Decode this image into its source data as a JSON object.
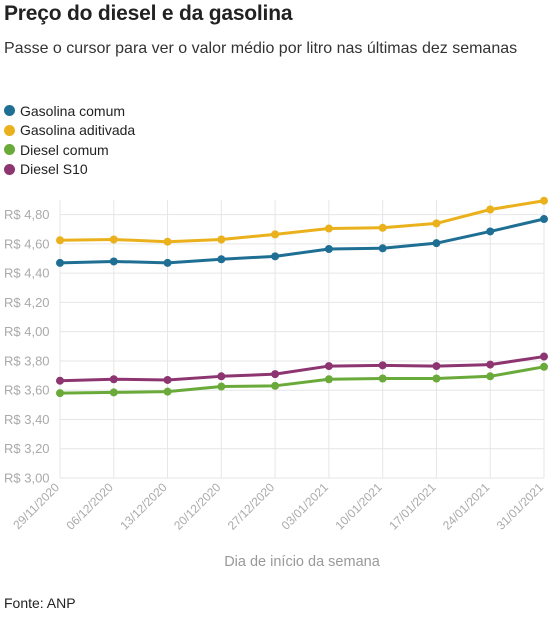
{
  "header": {
    "title": "Preço do diesel e da gasolina",
    "subtitle": "Passe o cursor para ver o valor médio por litro nas últimas dez semanas"
  },
  "source": "Fonte: ANP",
  "chart_data": {
    "type": "line",
    "xlabel": "Dia de início da semana",
    "ylabel": "",
    "ylim": [
      3.0,
      4.9
    ],
    "y_ticks": [
      3.0,
      3.2,
      3.4,
      3.6,
      3.8,
      4.0,
      4.2,
      4.4,
      4.6,
      4.8
    ],
    "y_tick_labels": [
      "R$ 3,00",
      "R$ 3,20",
      "R$ 3,40",
      "R$ 3,60",
      "R$ 3,80",
      "R$ 4,00",
      "R$ 4,20",
      "R$ 4,40",
      "R$ 4,60",
      "R$ 4,80"
    ],
    "grid": true,
    "legend_position": "top-left",
    "categories": [
      "29/11/2020",
      "06/12/2020",
      "13/12/2020",
      "20/12/2020",
      "27/12/2020",
      "03/01/2021",
      "10/01/2021",
      "17/01/2021",
      "24/01/2021",
      "31/01/2021"
    ],
    "series": [
      {
        "name": "Gasolina comum",
        "color": "#1f6f94",
        "values": [
          4.47,
          4.48,
          4.47,
          4.495,
          4.515,
          4.565,
          4.57,
          4.605,
          4.685,
          4.77
        ]
      },
      {
        "name": "Gasolina aditivada",
        "color": "#eab11c",
        "values": [
          4.625,
          4.63,
          4.615,
          4.63,
          4.665,
          4.705,
          4.71,
          4.74,
          4.835,
          4.895
        ]
      },
      {
        "name": "Diesel comum",
        "color": "#6aaa3a",
        "values": [
          3.58,
          3.585,
          3.59,
          3.625,
          3.63,
          3.675,
          3.68,
          3.68,
          3.695,
          3.76
        ]
      },
      {
        "name": "Diesel S10",
        "color": "#8d3570",
        "values": [
          3.665,
          3.675,
          3.67,
          3.695,
          3.71,
          3.765,
          3.77,
          3.765,
          3.775,
          3.83
        ]
      }
    ]
  }
}
